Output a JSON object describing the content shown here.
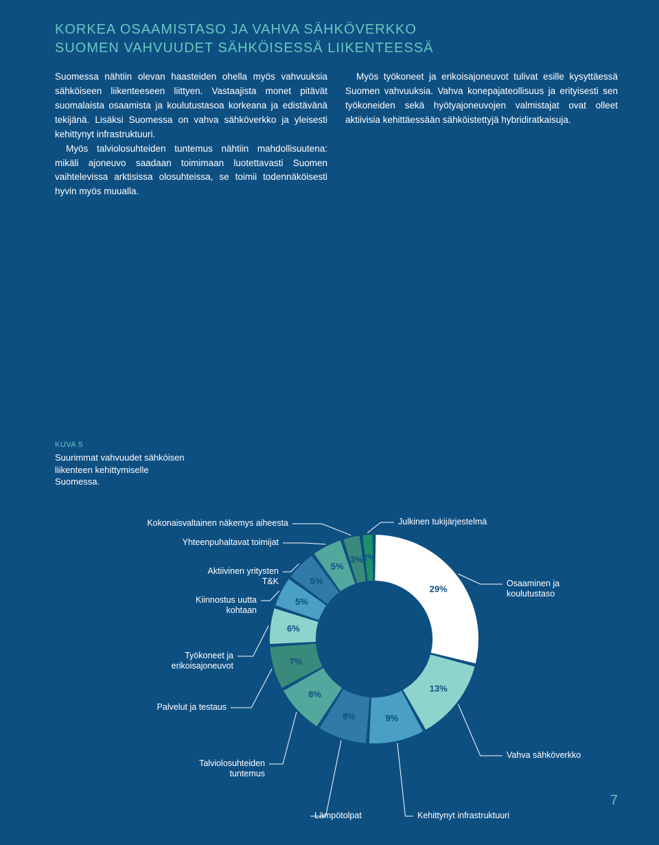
{
  "title_line1": "KORKEA OSAAMISTASO JA VAHVA SÄHKÖVERKKO",
  "title_line2": "SUOMEN VAHVUUDET SÄHKÖISESSÄ LIIKENTEESSÄ",
  "col1_p1": "Suomessa nähtiin olevan haasteiden ohella myös vahvuuksia sähköiseen liikenteeseen liittyen. Vastaajista monet pitävät suomalaista osaamista ja koulutustasoa korkeana ja edistävänä tekijänä. Lisäksi Suomessa on vahva sähköverkko ja yleisesti kehittynyt infrastruktuuri.",
  "col1_p2": "Myös talviolosuhteiden tuntemus nähtiin mahdollisuutena: mikäli ajoneuvo saadaan toimimaan luotettavasti Suomen vaihtelevissa arktisissa olosuhteissa, se toimii todennäköisesti hyvin myös muualla.",
  "col2_p1": "Myös työkoneet ja erikoisajoneuvot tulivat esille kysyttäessä Suomen vahvuuksia. Vahva konepajateollisuus ja erityisesti sen työkoneiden sekä hyötyajoneuvojen valmistajat ovat olleet aktiivisia kehittäessään sähköistettyjä hybridiratkaisuja.",
  "kuva_label": "KUVA 5",
  "kuva_caption": "Suurimmat vahvuudet sähköisen liikenteen kehittymiselle Suomessa.",
  "chart": {
    "type": "donut",
    "background_color": "#0e4f82",
    "inner_radius_ratio": 0.56,
    "segments": [
      {
        "label": "Osaaminen ja koulutustaso",
        "value": 29,
        "color": "#ffffff",
        "pct_text": "29%"
      },
      {
        "label": "Vahva sähköverkko",
        "value": 13,
        "color": "#8fd4cc",
        "pct_text": "13%"
      },
      {
        "label": "Kehittynyt infrastruktuuri",
        "value": 9,
        "color": "#4a9fc4",
        "pct_text": "9%"
      },
      {
        "label": "Lämpötolpat",
        "value": 8,
        "color": "#2f7aa8",
        "pct_text": "8%"
      },
      {
        "label": "Talviolosuhteiden tuntemus",
        "value": 8,
        "color": "#52a89c",
        "pct_text": "8%"
      },
      {
        "label": "Palvelut ja testaus",
        "value": 7,
        "color": "#3a8a7b",
        "pct_text": "7%"
      },
      {
        "label": "Työkoneet ja erikoisajoneuvot",
        "value": 6,
        "color": "#8fd4cc",
        "pct_text": "6%"
      },
      {
        "label": "Kiinnostus uutta kohtaan",
        "value": 5,
        "color": "#4a9fc4",
        "pct_text": "5%"
      },
      {
        "label": "Aktiivinen yritysten T&K",
        "value": 5,
        "color": "#2f7aa8",
        "pct_text": "5%"
      },
      {
        "label": "Yhteenpuhaltavat toimijat",
        "value": 5,
        "color": "#52a89c",
        "pct_text": "5%"
      },
      {
        "label": "Kokonaisvaltainen näkemys aiheesta",
        "value": 3,
        "color": "#3a8a7b",
        "pct_text": "3%"
      },
      {
        "label": "Julkinen tukijärjestelmä",
        "value": 2,
        "color": "#1f8f6a",
        "pct_text": "2%"
      }
    ]
  },
  "page_number": "7"
}
